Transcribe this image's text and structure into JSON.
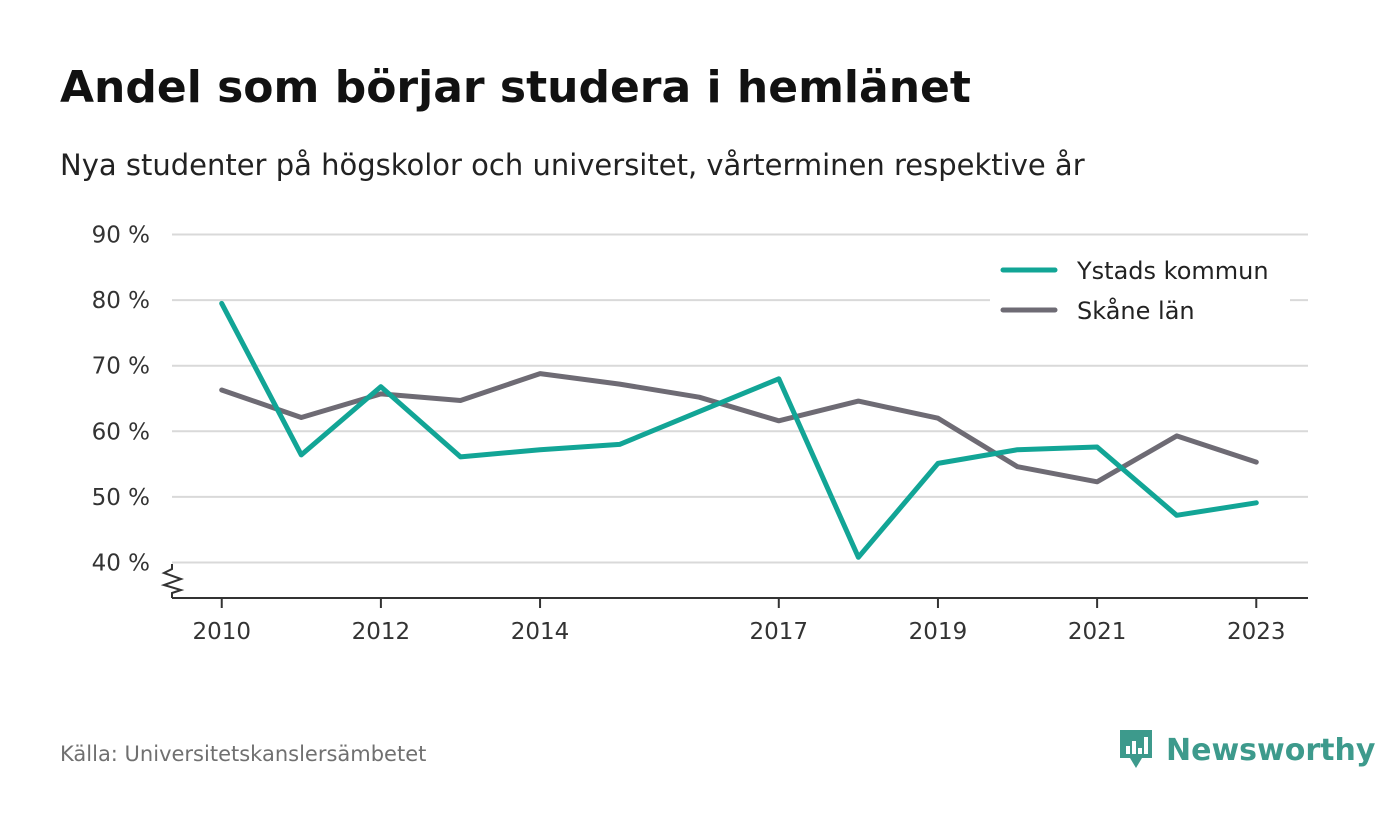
{
  "header": {
    "title": "Andel som börjar studera i hemlänet",
    "subtitle": "Nya studenter på högskolor och universitet, vårterminen respektive år"
  },
  "footer": {
    "source": "Källa: Universitetskanslersämbetet",
    "brand": "Newsworthy"
  },
  "colors": {
    "series_1": "#12a596",
    "series_2": "#6e6b74",
    "grid": "#d9d9d9",
    "axis": "#333333",
    "brand": "#3d9a8c"
  },
  "chart_data": {
    "type": "line",
    "x": [
      2010,
      2011,
      2012,
      2013,
      2014,
      2015,
      2016,
      2017,
      2018,
      2019,
      2020,
      2021,
      2022,
      2023
    ],
    "x_tick_labels": [
      "2010",
      "2012",
      "2014",
      "2017",
      "2019",
      "2021",
      "2023"
    ],
    "y_ticks": [
      40,
      50,
      60,
      70,
      80,
      90
    ],
    "y_tick_labels": [
      "40 %",
      "50 %",
      "60 %",
      "70 %",
      "80 %",
      "90 %"
    ],
    "ylim": [
      35,
      90
    ],
    "y_axis_break": true,
    "grid": true,
    "legend_position": "top-right",
    "series": [
      {
        "name": "Ystads kommun",
        "color": "#12a596",
        "values": [
          79.5,
          56.4,
          66.8,
          56.1,
          57.2,
          58.0,
          63.0,
          68.0,
          40.8,
          55.1,
          57.2,
          57.6,
          47.2,
          49.1
        ]
      },
      {
        "name": "Skåne län",
        "color": "#6e6b74",
        "values": [
          66.3,
          62.1,
          65.7,
          64.7,
          68.8,
          67.2,
          65.2,
          61.6,
          64.6,
          62.0,
          54.6,
          52.3,
          59.3,
          55.3
        ]
      }
    ]
  }
}
